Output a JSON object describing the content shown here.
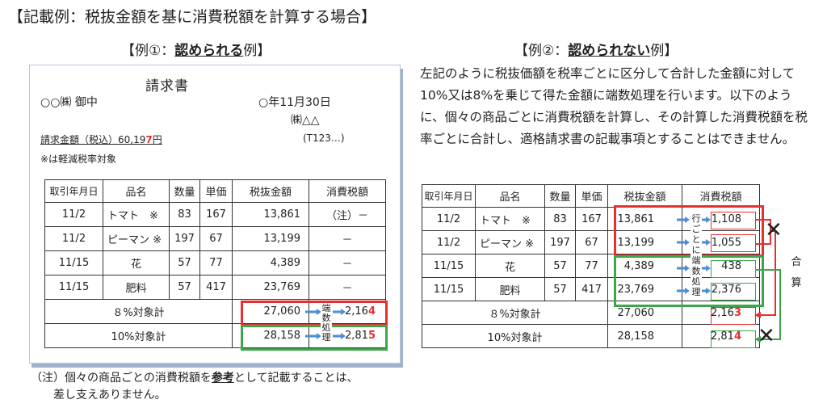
{
  "page_title": "【記載例：税抜金額を基に消費税額を計算する場合】",
  "example1": {
    "heading_prefix": "【例①：",
    "heading_bold": "認められる",
    "heading_suffix": "例】",
    "invoice_title": "請求書",
    "recipient": "○○㈱ 御中",
    "date": "○年11月30日",
    "issuer": "㈱△△",
    "reg_no": "(T123…)",
    "amount_label": "請求金額（税込）60,19",
    "amount_last": "7",
    "amount_unit": "円",
    "reduced_note": "※は軽減税率対象",
    "headers": [
      "取引年月日",
      "品名",
      "数量",
      "単価",
      "税抜金額",
      "消費税額"
    ],
    "rows": [
      {
        "date": "11/2",
        "item": "トマト　※",
        "qty": "83",
        "price": "167",
        "amount": "13,861",
        "tax": "（注）－"
      },
      {
        "date": "11/2",
        "item": "ピーマン ※",
        "qty": "197",
        "price": "67",
        "amount": "13,199",
        "tax": "－"
      },
      {
        "date": "11/15",
        "item": "花",
        "qty": "57",
        "price": "77",
        "amount": "4,389",
        "tax": "－"
      },
      {
        "date": "11/15",
        "item": "肥料",
        "qty": "57",
        "price": "417",
        "amount": "23,769",
        "tax": "－"
      }
    ],
    "sum8_label": "８%対象計",
    "sum8_amount": "27,060",
    "sum8_tax": "2,16",
    "sum8_tax_last": "4",
    "sum10_label": "10%対象計",
    "sum10_amount": "28,158",
    "sum10_tax": "2,81",
    "sum10_tax_last": "5",
    "rounding_vertical": [
      "端",
      "数",
      "処",
      "理"
    ],
    "note_line1": "（注）個々の商品ごとの消費税額を",
    "note_bold": "参考",
    "note_line1_end": "として記載することは、",
    "note_line2": "差し支えありません。"
  },
  "example2": {
    "heading_prefix": "【例②：",
    "heading_bold": "認められない",
    "heading_suffix": "例】",
    "paragraph": "左記のように税抜価額を税率ごとに区分して合計した金額に対して10%又は8%を乗じて得た金額に端数処理を行います。以下のように、個々の商品ごとに消費税額を計算し、その計算した消費税額を税率ごとに合計し、適格請求書の記載事項とすることはできません。",
    "headers": [
      "取引年月日",
      "品名",
      "数量",
      "単価",
      "税抜金額",
      "消費税額"
    ],
    "rows": [
      {
        "date": "11/2",
        "item": "トマト　※",
        "qty": "83",
        "price": "167",
        "amount": "13,861",
        "tax": "1,108"
      },
      {
        "date": "11/2",
        "item": "ピーマン ※",
        "qty": "197",
        "price": "67",
        "amount": "13,199",
        "tax": "1,055"
      },
      {
        "date": "11/15",
        "item": "花",
        "qty": "57",
        "price": "77",
        "amount": "4,389",
        "tax": "438"
      },
      {
        "date": "11/15",
        "item": "肥料",
        "qty": "57",
        "price": "417",
        "amount": "23,769",
        "tax": "2,376"
      }
    ],
    "sum8_label": "８%対象計",
    "sum8_amount": "27,060",
    "sum8_tax": "2,16",
    "sum8_tax_last": "3",
    "sum10_label": "10%対象計",
    "sum10_amount": "28,158",
    "sum10_tax": "2,81",
    "sum10_tax_last": "4",
    "per_line_vertical": [
      "行",
      "ご",
      "と",
      "に",
      "端",
      "数",
      "処",
      "理"
    ],
    "total_vertical": [
      "合",
      "算"
    ],
    "cross": "✕"
  }
}
